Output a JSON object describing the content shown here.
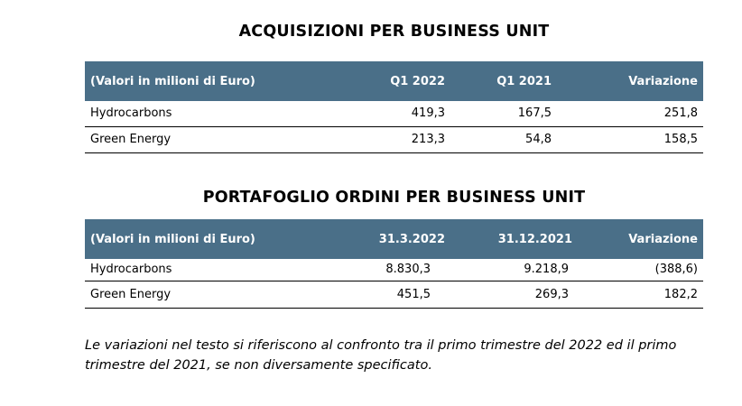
{
  "acquisizioni": {
    "title": "ACQUISIZIONI PER BUSINESS UNIT",
    "headers": [
      "(Valori in milioni di Euro)",
      "Q1 2022",
      "Q1 2021",
      "Variazione"
    ],
    "rows": [
      [
        "Hydrocarbons",
        "419,3",
        "167,5",
        "251,8"
      ],
      [
        "Green Energy",
        "213,3",
        "54,8",
        "158,5"
      ]
    ]
  },
  "portafoglio": {
    "title": "PORTAFOGLIO ORDINI PER BUSINESS UNIT",
    "headers": [
      "(Valori in milioni di Euro)",
      "31.3.2022",
      "31.12.2021",
      "Variazione"
    ],
    "rows": [
      [
        "Hydrocarbons",
        "8.830,3",
        "9.218,9",
        "(388,6)"
      ],
      [
        "Green Energy",
        "451,5",
        "269,3",
        "182,2"
      ]
    ]
  },
  "note": "Le variazioni nel testo si riferiscono al confronto tra il primo trimestre del 2022 ed il primo trimestre del 2021, se non diversamente specificato.",
  "colors": {
    "header_bg": "#4a6f88",
    "header_text": "#ffffff"
  }
}
